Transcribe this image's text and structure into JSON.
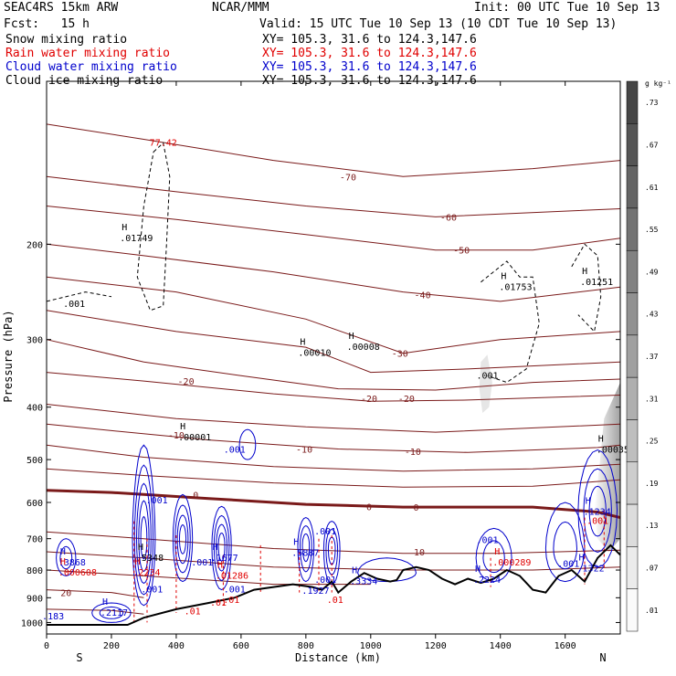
{
  "header": {
    "model": "SEAC4RS 15km ARW",
    "center": "NCAR/MMM",
    "init": "Init: 00 UTC Tue 10 Sep 13",
    "fcst": "Fcst:   15 h",
    "valid": "Valid: 15 UTC Tue 10 Sep 13 (10 CDT Tue 10 Sep 13)",
    "fields": [
      {
        "name": "Snow mixing ratio",
        "xy": "XY= 105.3, 31.6 to 124.3,147.6",
        "color": "#000000"
      },
      {
        "name": "Rain water mixing ratio",
        "xy": "XY= 105.3, 31.6 to 124.3,147.6",
        "color": "#e00000"
      },
      {
        "name": "Cloud water mixing ratio",
        "xy": "XY= 105.3, 31.6 to 124.3,147.6",
        "color": "#0000cc"
      },
      {
        "name": "Cloud ice mixing ratio",
        "xy": "XY= 105.3, 31.6 to 124.3,147.6",
        "color": "#000000"
      }
    ]
  },
  "chart_data": {
    "type": "contour-cross-section",
    "xlabel": "Distance (km)",
    "ylabel": "Pressure (hPa)",
    "xlim": [
      0,
      1770
    ],
    "ylim": [
      1050,
      100
    ],
    "y_log": true,
    "x_ticks": [
      0,
      200,
      400,
      600,
      800,
      1000,
      1200,
      1400,
      1600
    ],
    "y_ticks": [
      200,
      300,
      400,
      500,
      600,
      700,
      800,
      900,
      1000
    ],
    "x_endpoints": {
      "left": "S",
      "right": "N"
    },
    "colorbar": {
      "unit": "g kg⁻¹",
      "labels": [
        ".73",
        ".67",
        ".61",
        ".55",
        ".49",
        ".43",
        ".37",
        ".31",
        ".25",
        ".19",
        ".13",
        ".07",
        ".01"
      ]
    },
    "temperature_contours": [
      {
        "label": "-70",
        "x": 930,
        "p": 150
      },
      {
        "label": "-60",
        "x": 1240,
        "p": 178
      },
      {
        "label": "-50",
        "x": 1280,
        "p": 205
      },
      {
        "label": "-40",
        "x": 1160,
        "p": 248
      },
      {
        "label": "-30",
        "x": 1090,
        "p": 318
      },
      {
        "label": "-20",
        "x": 430,
        "p": 358
      },
      {
        "label": "-20",
        "x": 995,
        "p": 385
      },
      {
        "label": "-20",
        "x": 1110,
        "p": 385
      },
      {
        "label": "-10",
        "x": 400,
        "p": 450
      },
      {
        "label": "-10",
        "x": 795,
        "p": 478
      },
      {
        "label": "-10",
        "x": 1130,
        "p": 483
      },
      {
        "label": "0",
        "x": 460,
        "p": 580
      },
      {
        "label": "0",
        "x": 995,
        "p": 610
      },
      {
        "label": "0",
        "x": 1140,
        "p": 612
      },
      {
        "label": "10",
        "x": 1150,
        "p": 740
      },
      {
        "label": "20",
        "x": 60,
        "p": 880
      }
    ],
    "maxima": [
      {
        "label": ".01749",
        "x": 260,
        "p": 195,
        "color": "#000000"
      },
      {
        "label": ".00010",
        "x": 810,
        "p": 318,
        "color": "#000000"
      },
      {
        "label": ".00008",
        "x": 960,
        "p": 310,
        "color": "#000000"
      },
      {
        "label": ".01753",
        "x": 1430,
        "p": 240,
        "color": "#000000"
      },
      {
        "label": ".01251",
        "x": 1680,
        "p": 235,
        "color": "#000000"
      },
      {
        "label": ".00001",
        "x": 440,
        "p": 455,
        "color": "#000000"
      },
      {
        "label": ".00035",
        "x": 1730,
        "p": 480,
        "color": "#000000"
      },
      {
        "label": ".3868",
        "x": 70,
        "p": 775,
        "color": "#0000cc"
      },
      {
        "label": ".5348",
        "x": 310,
        "p": 760,
        "color": "#000000"
      },
      {
        "label": ".1677",
        "x": 540,
        "p": 760,
        "color": "#0000cc"
      },
      {
        "label": ".5887",
        "x": 790,
        "p": 745,
        "color": "#0000cc"
      },
      {
        "label": ".3334",
        "x": 970,
        "p": 840,
        "color": "#0000cc"
      },
      {
        "label": ".2224",
        "x": 1350,
        "p": 835,
        "color": "#0000cc"
      },
      {
        "label": ".1322",
        "x": 1670,
        "p": 795,
        "color": "#0000cc"
      },
      {
        "label": ".1234",
        "x": 1690,
        "p": 625,
        "color": "#0000cc"
      },
      {
        "label": ".2117",
        "x": 200,
        "p": 960,
        "color": "#0000cc"
      },
      {
        "label": ".000608",
        "x": 70,
        "p": 810,
        "color": "#e00000"
      },
      {
        "label": ".2234",
        "x": 300,
        "p": 810,
        "color": "#e00000"
      },
      {
        "label": ".01286",
        "x": 555,
        "p": 820,
        "color": "#e00000"
      },
      {
        "label": ".000289",
        "x": 1410,
        "p": 775,
        "color": "#e00000"
      }
    ],
    "other_labels": [
      {
        "label": ".001",
        "x": 85,
        "p": 258,
        "color": "#000000"
      },
      {
        "label": ".001",
        "x": 1360,
        "p": 350,
        "color": "#000000"
      },
      {
        "label": ".001",
        "x": 580,
        "p": 480,
        "color": "#0000cc"
      },
      {
        "label": ".001",
        "x": 340,
        "p": 595,
        "color": "#0000cc"
      },
      {
        "label": ".001",
        "x": 860,
        "p": 680,
        "color": "#0000cc"
      },
      {
        "label": ".001",
        "x": 1360,
        "p": 705,
        "color": "#0000cc"
      },
      {
        "label": ".001",
        "x": 1610,
        "p": 780,
        "color": "#0000cc"
      },
      {
        "label": ".001",
        "x": 1700,
        "p": 650,
        "color": "#e00000"
      },
      {
        "label": ".001",
        "x": 325,
        "p": 870,
        "color": "#0000cc"
      },
      {
        "label": ".001",
        "x": 580,
        "p": 870,
        "color": "#0000cc"
      },
      {
        "label": ".001",
        "x": 860,
        "p": 835,
        "color": "#0000cc"
      },
      {
        "label": ".001",
        "x": 480,
        "p": 775,
        "color": "#0000cc"
      },
      {
        "label": ".1927",
        "x": 830,
        "p": 875,
        "color": "#0000cc"
      },
      {
        "label": ".01",
        "x": 450,
        "p": 955,
        "color": "#e00000"
      },
      {
        "label": ".01",
        "x": 530,
        "p": 920,
        "color": "#e00000"
      },
      {
        "label": ".01",
        "x": 570,
        "p": 910,
        "color": "#e00000"
      },
      {
        "label": ".01",
        "x": 890,
        "p": 910,
        "color": "#e00000"
      },
      {
        "label": ".183",
        "x": 20,
        "p": 975,
        "color": "#0000cc"
      },
      {
        "label": "77.42",
        "x": 360,
        "p": 130,
        "color": "#e00000"
      }
    ]
  }
}
